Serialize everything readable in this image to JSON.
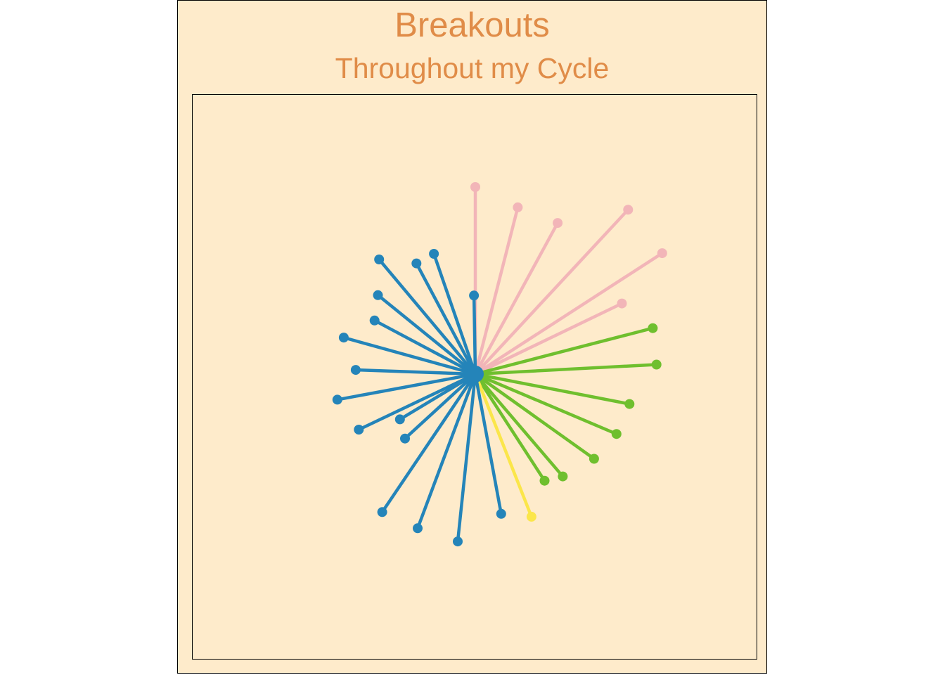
{
  "chart_data": {
    "type": "radial-lollipop",
    "title": "Breakouts",
    "subtitle": "Throughout my Cycle",
    "colors": {
      "pink": "#F2B5B8",
      "green": "#6FBF2E",
      "yellow": "#FBE64A",
      "blue": "#2484B9",
      "title": "#E08C48",
      "background": "#FEEBCB"
    },
    "grid": false,
    "legend": "none",
    "center_dot": {
      "color": "#2484B9"
    },
    "spokes": [
      {
        "length": 1.0,
        "angle": 0,
        "color": "pink"
      },
      {
        "length": 0.92,
        "angle": 14.3,
        "color": "pink"
      },
      {
        "length": 0.92,
        "angle": 28.6,
        "color": "pink"
      },
      {
        "length": 1.2,
        "angle": 42.9,
        "color": "pink"
      },
      {
        "length": 1.19,
        "angle": 57.1,
        "color": "pink"
      },
      {
        "length": 0.87,
        "angle": 64.3,
        "color": "pink"
      },
      {
        "length": 0.98,
        "angle": 75.5,
        "color": "green"
      },
      {
        "length": 0.97,
        "angle": 87.0,
        "color": "green"
      },
      {
        "length": 0.84,
        "angle": 101.0,
        "color": "green"
      },
      {
        "length": 0.82,
        "angle": 113.0,
        "color": "green"
      },
      {
        "length": 0.78,
        "angle": 125.5,
        "color": "green"
      },
      {
        "length": 0.72,
        "angle": 139.5,
        "color": "green"
      },
      {
        "length": 0.68,
        "angle": 147.0,
        "color": "green"
      },
      {
        "length": 0.82,
        "angle": 158.5,
        "color": "yellow"
      },
      {
        "length": 0.76,
        "angle": 169.5,
        "color": "blue"
      },
      {
        "length": 0.9,
        "angle": 186.0,
        "color": "blue"
      },
      {
        "length": 0.88,
        "angle": 200.5,
        "color": "blue"
      },
      {
        "length": 0.89,
        "angle": 214.0,
        "color": "blue"
      },
      {
        "length": 0.51,
        "angle": 227.5,
        "color": "blue"
      },
      {
        "length": 0.47,
        "angle": 239.0,
        "color": "blue"
      },
      {
        "length": 0.69,
        "angle": 244.5,
        "color": "blue"
      },
      {
        "length": 0.75,
        "angle": 259.5,
        "color": "blue"
      },
      {
        "length": 0.64,
        "angle": 272.0,
        "color": "blue"
      },
      {
        "length": 0.73,
        "angle": 285.5,
        "color": "blue"
      },
      {
        "length": 0.61,
        "angle": 298.0,
        "color": "blue"
      },
      {
        "length": 0.67,
        "angle": 309.0,
        "color": "blue"
      },
      {
        "length": 0.8,
        "angle": 320.0,
        "color": "blue"
      },
      {
        "length": 0.67,
        "angle": 332.0,
        "color": "blue"
      },
      {
        "length": 0.68,
        "angle": 341.0,
        "color": "blue"
      },
      {
        "length": 0.42,
        "angle": 359.0,
        "color": "blue"
      }
    ]
  }
}
